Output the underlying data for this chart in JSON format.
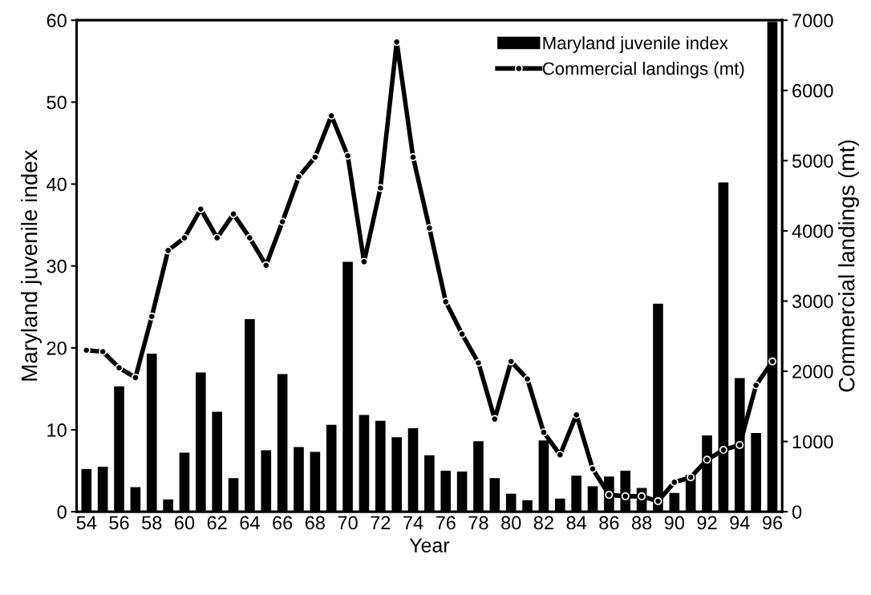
{
  "chart_data": {
    "type": "bar",
    "xlabel": "Year",
    "ylabel": "Maryland juvenile index",
    "y2label": "Commercial landings (mt)",
    "categories": [
      "54",
      null,
      "56",
      null,
      "58",
      null,
      "60",
      null,
      "62",
      null,
      "64",
      null,
      "66",
      null,
      "68",
      null,
      "70",
      null,
      "72",
      null,
      "74",
      null,
      "76",
      null,
      "78",
      null,
      "80",
      null,
      "82",
      null,
      "84",
      null,
      "86",
      null,
      "88",
      null,
      "90",
      null,
      "92",
      null,
      "94",
      null,
      "96"
    ],
    "series": [
      {
        "name": "Maryland juvenile index",
        "type": "bar",
        "color": "#000000",
        "values": [
          5.2,
          5.5,
          15.3,
          3.0,
          19.3,
          1.5,
          7.2,
          17.0,
          12.2,
          4.1,
          23.5,
          7.5,
          16.8,
          7.9,
          7.3,
          10.6,
          30.5,
          11.8,
          11.1,
          9.1,
          10.2,
          6.9,
          5.0,
          4.9,
          8.6,
          4.1,
          2.2,
          1.4,
          8.7,
          1.6,
          4.4,
          3.1,
          4.3,
          5.0,
          2.9,
          25.4,
          2.3,
          4.5,
          9.3,
          40.2,
          16.3,
          9.6,
          59.8
        ]
      },
      {
        "name": "Commercial landings (mt)",
        "type": "line",
        "axis": "y2",
        "color": "#000000",
        "values": [
          2300,
          2280,
          2050,
          1910,
          2780,
          3720,
          3900,
          4310,
          3900,
          4240,
          3900,
          3510,
          4130,
          4770,
          5050,
          5640,
          5070,
          3560,
          4610,
          6690,
          5050,
          4040,
          2990,
          2530,
          2120,
          1320,
          2140,
          1890,
          1130,
          810,
          1380,
          610,
          240,
          220,
          220,
          150,
          420,
          490,
          740,
          880,
          950,
          1800,
          2140
        ]
      }
    ],
    "ylim": [
      0,
      60
    ],
    "yticks": [
      0,
      10,
      20,
      30,
      40,
      50,
      60
    ],
    "y2lim": [
      0,
      7000
    ],
    "y2ticks": [
      0,
      1000,
      2000,
      3000,
      4000,
      5000,
      6000,
      7000
    ],
    "legend": "top right",
    "grid": false,
    "marker": "circle",
    "line_style": "solid"
  }
}
